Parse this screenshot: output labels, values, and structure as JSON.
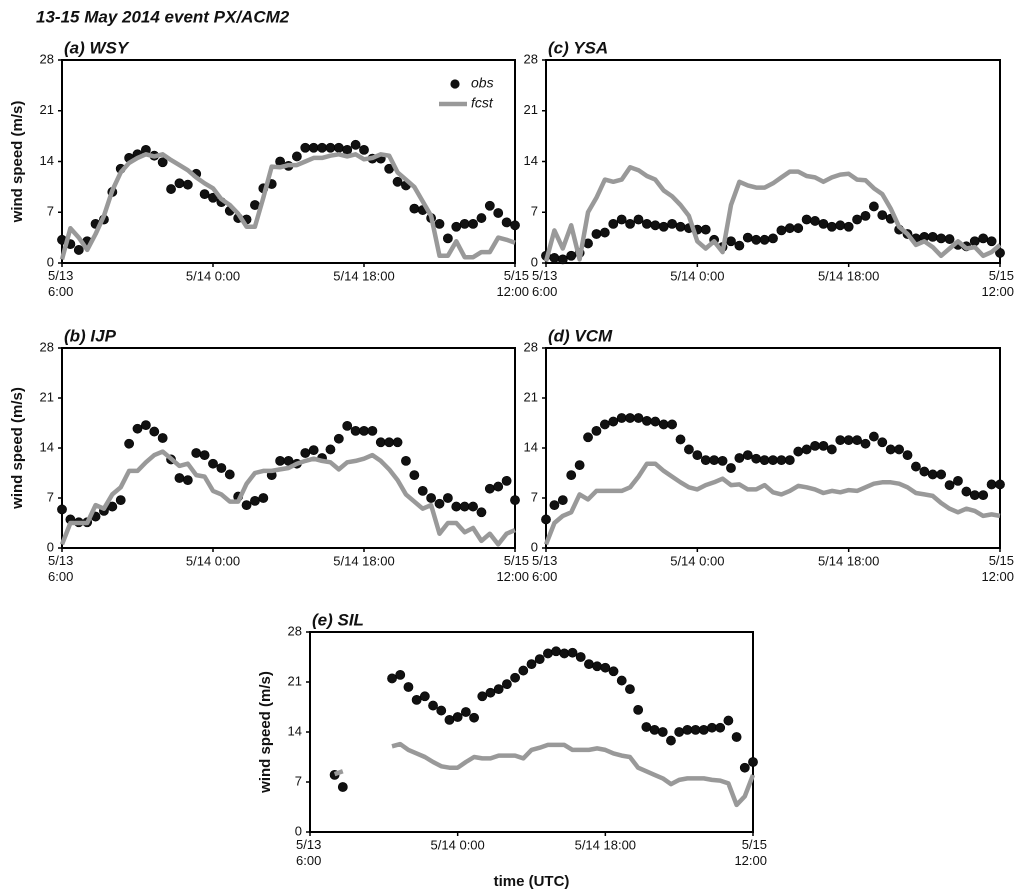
{
  "title": "13-15 May 2014 event    PX/ACM2",
  "chart_data": [
    {
      "type": "line",
      "title": "(a) WSY",
      "y_label": "wind speed (m/s)",
      "legend": "upper right",
      "x": [
        0,
        1,
        2,
        3,
        4,
        5,
        6,
        7,
        8,
        9,
        10,
        11,
        12,
        13,
        14,
        15,
        16,
        17,
        18,
        19,
        20,
        21,
        22,
        23,
        24,
        25,
        26,
        27,
        28,
        29,
        30,
        31,
        32,
        33,
        34,
        35,
        36,
        37,
        38,
        39,
        40,
        41,
        42,
        43,
        44,
        45,
        46,
        47,
        48,
        49,
        50,
        51,
        52,
        53,
        54
      ],
      "xlim": [
        0,
        54
      ],
      "xticks": [
        {
          "value": 0,
          "label": "5/13 6:00"
        },
        {
          "value": 18,
          "label": "5/14 0:00"
        },
        {
          "value": 36,
          "label": "5/14 18:00"
        },
        {
          "value": 54,
          "label": "5/15 12:00"
        }
      ],
      "ylim": [
        0,
        28
      ],
      "yticks": [
        0,
        7,
        14,
        21,
        28
      ],
      "series": [
        {
          "name": "obs",
          "mode": "markers",
          "color": "#111111",
          "values": [
            3.2,
            2.6,
            1.8,
            3.0,
            5.4,
            6.0,
            9.8,
            13.0,
            14.5,
            15.0,
            15.6,
            14.8,
            13.9,
            10.2,
            11.0,
            10.8,
            12.3,
            9.5,
            9.0,
            8.4,
            7.2,
            6.2,
            6.0,
            8.0,
            10.3,
            10.9,
            14.0,
            13.4,
            14.7,
            15.9,
            15.9,
            15.9,
            15.9,
            15.9,
            15.6,
            16.3,
            15.6,
            14.4,
            14.4,
            13.0,
            11.2,
            10.7,
            7.5,
            7.3,
            6.2,
            5.4,
            3.4,
            5.0,
            5.4,
            5.4,
            6.2,
            7.9,
            6.9,
            5.6,
            5.2
          ]
        },
        {
          "name": "fcst",
          "mode": "lines",
          "color": "#999999",
          "values": [
            0.5,
            4.8,
            3.5,
            1.8,
            4.0,
            6.5,
            10.0,
            12.5,
            13.8,
            14.5,
            15.0,
            14.7,
            15.0,
            14.2,
            13.5,
            12.8,
            11.8,
            11.0,
            10.3,
            8.8,
            8.0,
            6.8,
            5.0,
            5.0,
            9.0,
            13.3,
            13.2,
            13.5,
            13.5,
            14.0,
            14.5,
            14.5,
            14.8,
            15.0,
            14.7,
            15.0,
            14.3,
            14.5,
            15.0,
            14.8,
            12.5,
            11.5,
            10.5,
            8.5,
            6.5,
            1.0,
            1.0,
            3.0,
            0.8,
            0.8,
            1.5,
            1.5,
            3.5,
            3.2,
            2.8
          ]
        }
      ]
    },
    {
      "type": "line",
      "title": "(b) IJP",
      "y_label": "wind speed (m/s)",
      "x": [
        0,
        1,
        2,
        3,
        4,
        5,
        6,
        7,
        8,
        9,
        10,
        11,
        12,
        13,
        14,
        15,
        16,
        17,
        18,
        19,
        20,
        21,
        22,
        23,
        24,
        25,
        26,
        27,
        28,
        29,
        30,
        31,
        32,
        33,
        34,
        35,
        36,
        37,
        38,
        39,
        40,
        41,
        42,
        43,
        44,
        45,
        46,
        47,
        48,
        49,
        50,
        51,
        52,
        53,
        54
      ],
      "xlim": [
        0,
        54
      ],
      "xticks": [
        {
          "value": 0,
          "label": "5/13 6:00"
        },
        {
          "value": 18,
          "label": "5/14 0:00"
        },
        {
          "value": 36,
          "label": "5/14 18:00"
        },
        {
          "value": 54,
          "label": "5/15 12:00"
        }
      ],
      "ylim": [
        0,
        28
      ],
      "yticks": [
        0,
        7,
        14,
        21,
        28
      ],
      "series": [
        {
          "name": "obs",
          "mode": "markers",
          "color": "#111111",
          "values": [
            5.4,
            4.0,
            3.6,
            3.6,
            4.4,
            5.2,
            5.8,
            6.7,
            14.6,
            16.7,
            17.2,
            16.3,
            15.4,
            12.4,
            9.8,
            9.5,
            13.3,
            13.0,
            11.8,
            11.2,
            10.3,
            7.2,
            6.0,
            6.6,
            7.0,
            10.2,
            12.2,
            12.2,
            11.8,
            13.3,
            13.7,
            12.6,
            13.8,
            15.3,
            17.1,
            16.4,
            16.4,
            16.4,
            14.8,
            14.8,
            14.8,
            12.2,
            10.2,
            8.0,
            7.0,
            6.2,
            7.0,
            5.8,
            5.8,
            5.8,
            5.0,
            8.3,
            8.6,
            9.4,
            6.7
          ]
        },
        {
          "name": "fcst",
          "mode": "lines",
          "color": "#999999",
          "values": [
            0.5,
            3.5,
            3.5,
            3.5,
            6.0,
            5.5,
            7.5,
            8.5,
            10.8,
            10.8,
            12.0,
            13.0,
            13.5,
            12.5,
            11.5,
            11.8,
            10.2,
            10.0,
            8.0,
            7.5,
            6.5,
            6.5,
            9.0,
            10.5,
            10.8,
            10.8,
            11.0,
            11.2,
            11.8,
            12.2,
            12.5,
            12.2,
            12.0,
            11.0,
            12.0,
            12.2,
            12.5,
            13.0,
            12.2,
            11.0,
            9.5,
            7.5,
            6.5,
            5.5,
            6.0,
            2.0,
            3.5,
            3.5,
            2.2,
            2.8,
            1.0,
            2.0,
            0.5,
            2.0,
            2.5
          ]
        }
      ]
    },
    {
      "type": "line",
      "title": "(c) YSA",
      "x": [
        0,
        1,
        2,
        3,
        4,
        5,
        6,
        7,
        8,
        9,
        10,
        11,
        12,
        13,
        14,
        15,
        16,
        17,
        18,
        19,
        20,
        21,
        22,
        23,
        24,
        25,
        26,
        27,
        28,
        29,
        30,
        31,
        32,
        33,
        34,
        35,
        36,
        37,
        38,
        39,
        40,
        41,
        42,
        43,
        44,
        45,
        46,
        47,
        48,
        49,
        50,
        51,
        52,
        53,
        54
      ],
      "xlim": [
        0,
        54
      ],
      "xticks": [
        {
          "value": 0,
          "label": "5/13 6:00"
        },
        {
          "value": 18,
          "label": "5/14 0:00"
        },
        {
          "value": 36,
          "label": "5/14 18:00"
        },
        {
          "value": 54,
          "label": "5/15 12:00"
        }
      ],
      "ylim": [
        0,
        28
      ],
      "yticks": [
        0,
        7,
        14,
        21,
        28
      ],
      "series": [
        {
          "name": "obs",
          "mode": "markers",
          "color": "#111111",
          "values": [
            1.0,
            0.7,
            0.5,
            1.0,
            1.4,
            2.7,
            4.0,
            4.2,
            5.4,
            6.0,
            5.4,
            6.0,
            5.4,
            5.2,
            5.0,
            5.4,
            5.0,
            4.8,
            4.6,
            4.6,
            3.2,
            2.2,
            3.0,
            2.4,
            3.5,
            3.2,
            3.2,
            3.4,
            4.5,
            4.8,
            4.8,
            6.0,
            5.8,
            5.4,
            5.0,
            5.2,
            5.0,
            6.0,
            6.5,
            7.8,
            6.6,
            6.1,
            4.6,
            4.0,
            3.4,
            3.6,
            3.6,
            3.4,
            3.3,
            2.5,
            2.3,
            3.0,
            3.4,
            3.0,
            1.4
          ]
        },
        {
          "name": "fcst",
          "mode": "lines",
          "color": "#999999",
          "values": [
            0.2,
            4.5,
            2.0,
            5.2,
            0.5,
            7.0,
            9.0,
            11.5,
            11.2,
            11.5,
            13.2,
            12.8,
            12.0,
            11.5,
            10.0,
            9.2,
            8.0,
            6.5,
            3.0,
            2.0,
            3.0,
            1.5,
            8.0,
            11.2,
            10.7,
            10.4,
            10.4,
            11.0,
            11.8,
            12.6,
            12.6,
            12.0,
            11.8,
            11.2,
            11.8,
            12.2,
            12.3,
            11.5,
            11.4,
            10.3,
            9.5,
            7.5,
            5.0,
            4.0,
            2.5,
            3.0,
            2.2,
            1.0,
            2.0,
            3.0,
            2.0,
            2.2,
            1.0,
            1.5,
            2.5
          ]
        }
      ]
    },
    {
      "type": "line",
      "title": "(d) VCM",
      "x": [
        0,
        1,
        2,
        3,
        4,
        5,
        6,
        7,
        8,
        9,
        10,
        11,
        12,
        13,
        14,
        15,
        16,
        17,
        18,
        19,
        20,
        21,
        22,
        23,
        24,
        25,
        26,
        27,
        28,
        29,
        30,
        31,
        32,
        33,
        34,
        35,
        36,
        37,
        38,
        39,
        40,
        41,
        42,
        43,
        44,
        45,
        46,
        47,
        48,
        49,
        50,
        51,
        52,
        53,
        54
      ],
      "xlim": [
        0,
        54
      ],
      "xticks": [
        {
          "value": 0,
          "label": "5/13 6:00"
        },
        {
          "value": 18,
          "label": "5/14 0:00"
        },
        {
          "value": 36,
          "label": "5/14 18:00"
        },
        {
          "value": 54,
          "label": "5/15 12:00"
        }
      ],
      "ylim": [
        0,
        28
      ],
      "yticks": [
        0,
        7,
        14,
        21,
        28
      ],
      "series": [
        {
          "name": "obs",
          "mode": "markers",
          "color": "#111111",
          "values": [
            4.0,
            6.0,
            6.7,
            10.2,
            11.6,
            15.5,
            16.4,
            17.3,
            17.7,
            18.2,
            18.2,
            18.2,
            17.8,
            17.7,
            17.3,
            17.3,
            15.2,
            13.8,
            13.0,
            12.3,
            12.3,
            12.2,
            11.2,
            12.6,
            13.0,
            12.5,
            12.3,
            12.3,
            12.3,
            12.3,
            13.5,
            13.8,
            14.3,
            14.3,
            13.8,
            15.1,
            15.1,
            15.1,
            14.6,
            15.6,
            14.8,
            13.8,
            13.8,
            13.0,
            11.4,
            10.7,
            10.3,
            10.3,
            8.8,
            9.4,
            7.9,
            7.4,
            7.4,
            8.9,
            8.9
          ]
        },
        {
          "name": "fcst",
          "mode": "lines",
          "color": "#999999",
          "values": [
            0.5,
            3.5,
            4.5,
            5.0,
            7.5,
            6.8,
            8.0,
            8.0,
            8.0,
            8.0,
            8.5,
            10.0,
            11.8,
            11.8,
            10.8,
            10.0,
            9.2,
            8.5,
            8.2,
            8.8,
            9.2,
            9.7,
            8.8,
            8.9,
            8.2,
            8.2,
            8.8,
            7.8,
            7.5,
            8.0,
            8.7,
            8.5,
            8.2,
            7.7,
            8.0,
            7.8,
            8.1,
            8.0,
            8.5,
            9.0,
            9.2,
            9.2,
            9.0,
            8.5,
            7.7,
            7.5,
            7.3,
            6.3,
            5.5,
            5.0,
            5.5,
            5.2,
            4.5,
            4.7,
            4.5
          ]
        }
      ]
    },
    {
      "type": "line",
      "title": "(e) SIL",
      "y_label": "wind speed (m/s)",
      "x_label": "time (UTC)",
      "x": [
        0,
        1,
        2,
        3,
        4,
        5,
        6,
        7,
        8,
        9,
        10,
        11,
        12,
        13,
        14,
        15,
        16,
        17,
        18,
        19,
        20,
        21,
        22,
        23,
        24,
        25,
        26,
        27,
        28,
        29,
        30,
        31,
        32,
        33,
        34,
        35,
        36,
        37,
        38,
        39,
        40,
        41,
        42,
        43,
        44,
        45,
        46,
        47,
        48,
        49,
        50,
        51,
        52,
        53,
        54
      ],
      "xlim": [
        0,
        54
      ],
      "xticks": [
        {
          "value": 0,
          "label": "5/13 6:00"
        },
        {
          "value": 18,
          "label": "5/14 0:00"
        },
        {
          "value": 36,
          "label": "5/14 18:00"
        },
        {
          "value": 54,
          "label": "5/15 12:00"
        }
      ],
      "ylim": [
        0,
        28
      ],
      "yticks": [
        0,
        7,
        14,
        21,
        28
      ],
      "series": [
        {
          "name": "obs",
          "mode": "markers",
          "color": "#111111",
          "values": [
            null,
            null,
            null,
            8.0,
            6.3,
            null,
            null,
            null,
            null,
            null,
            21.5,
            22.0,
            20.3,
            18.5,
            19.0,
            17.7,
            17.0,
            15.7,
            16.1,
            16.8,
            16.0,
            19.0,
            19.5,
            20.0,
            20.7,
            21.6,
            22.6,
            23.5,
            24.2,
            25.0,
            25.3,
            25.0,
            25.1,
            24.5,
            23.5,
            23.2,
            23.0,
            22.5,
            21.2,
            20.0,
            17.1,
            14.7,
            14.3,
            14.0,
            12.8,
            14.0,
            14.3,
            14.3,
            14.3,
            14.6,
            14.6,
            15.6,
            13.3,
            9.0,
            9.8
          ]
        },
        {
          "name": "fcst",
          "mode": "lines",
          "color": "#999999",
          "values": [
            null,
            null,
            null,
            8.1,
            8.5,
            null,
            null,
            null,
            null,
            null,
            12.0,
            12.3,
            11.5,
            11.0,
            10.5,
            9.8,
            9.2,
            9.0,
            9.0,
            9.8,
            10.5,
            10.3,
            10.3,
            10.7,
            10.7,
            10.7,
            10.3,
            11.5,
            11.8,
            12.2,
            12.2,
            12.2,
            11.5,
            11.5,
            11.5,
            11.7,
            11.5,
            11.0,
            10.7,
            10.5,
            9.0,
            8.5,
            8.0,
            7.5,
            6.7,
            7.3,
            7.5,
            7.5,
            7.5,
            7.3,
            7.2,
            6.8,
            3.8,
            5.0,
            8.0
          ]
        }
      ]
    }
  ]
}
